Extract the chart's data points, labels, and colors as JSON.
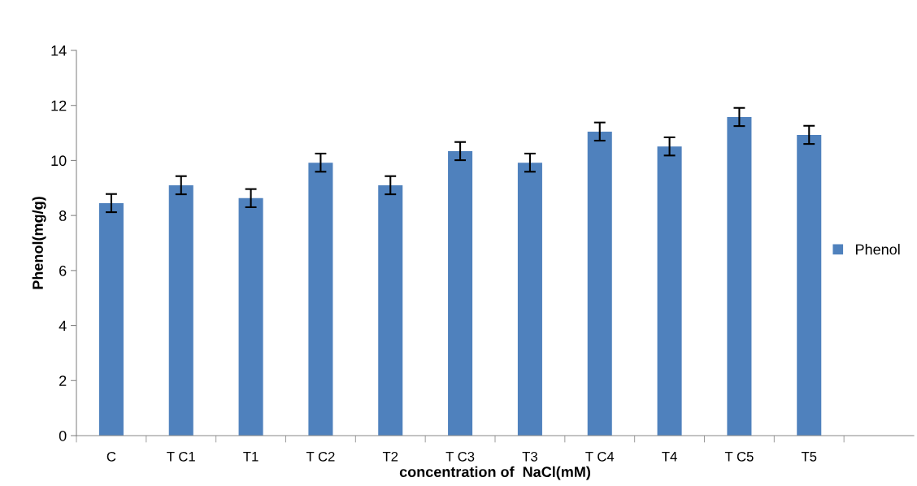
{
  "chart_data": {
    "type": "bar",
    "xlabel": "concentration of  NaCl(mM)",
    "ylabel": "Phenol(mg/g)",
    "categories": [
      "C",
      "T C1",
      "T1",
      "T C2",
      "T2",
      "T C3",
      "T3",
      "T C4",
      "T4",
      "T C5",
      "T5",
      null
    ],
    "series": [
      {
        "name": "Phenol",
        "color": "#4f81bd",
        "values": [
          8.45,
          9.1,
          8.63,
          9.92,
          9.1,
          10.34,
          9.92,
          11.05,
          10.51,
          11.58,
          10.93,
          null
        ],
        "errors": [
          0.33,
          0.33,
          0.33,
          0.33,
          0.33,
          0.33,
          0.33,
          0.33,
          0.33,
          0.33,
          0.33,
          null
        ]
      }
    ],
    "ylim": [
      0,
      14
    ],
    "yticks": [
      0,
      2,
      4,
      6,
      8,
      10,
      12,
      14
    ],
    "grid": false,
    "legend": "right"
  }
}
